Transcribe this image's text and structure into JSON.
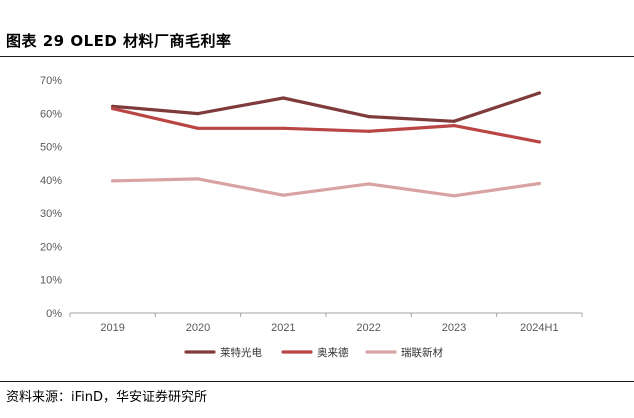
{
  "header": {
    "title": "图表 29 OLED  材料厂商毛利率"
  },
  "footer": {
    "source": "资料来源：iFinD，华安证券研究所"
  },
  "colors": {
    "series": [
      "#7f3b3b",
      "#b94545",
      "#d9a3a3"
    ],
    "axis": "#a6a6a6",
    "tick": "#595959"
  },
  "chart_data": {
    "type": "line",
    "title": "OLED  材料厂商毛利率",
    "categories": [
      "2019",
      "2020",
      "2021",
      "2022",
      "2023",
      "2024H1"
    ],
    "ylim": [
      0,
      70
    ],
    "yticks": [
      0,
      10,
      20,
      30,
      40,
      50,
      60,
      70
    ],
    "ytick_labels": [
      "0%",
      "10%",
      "20%",
      "30%",
      "40%",
      "50%",
      "60%",
      "70%"
    ],
    "y_unit": "%",
    "grid": false,
    "legend_position": "bottom",
    "series": [
      {
        "name": "莱特光电",
        "values": [
          62.1,
          59.9,
          64.6,
          59.0,
          57.6,
          66.1
        ]
      },
      {
        "name": "奥来德",
        "values": [
          61.4,
          55.5,
          55.5,
          54.6,
          56.3,
          51.4
        ]
      },
      {
        "name": "瑞联新材",
        "values": [
          39.7,
          40.3,
          35.4,
          38.8,
          35.2,
          38.9
        ]
      }
    ]
  }
}
